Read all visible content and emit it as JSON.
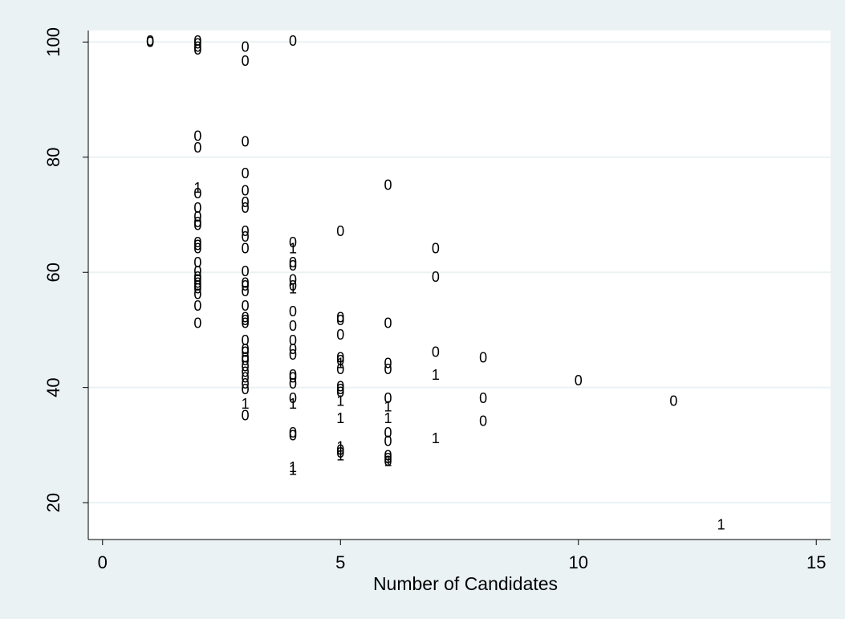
{
  "chart_data": {
    "type": "scatter",
    "xlabel": "Number of Candidates",
    "x": [
      1,
      1,
      2,
      2,
      2,
      2,
      2,
      2,
      2,
      2,
      2,
      2,
      2,
      2,
      2,
      2,
      2,
      2,
      2,
      2,
      2,
      2,
      2,
      2,
      2,
      2,
      2,
      3,
      3,
      3,
      3,
      3,
      3,
      3,
      3,
      3,
      3,
      3,
      3,
      3,
      3,
      3,
      3,
      3,
      3,
      3,
      3,
      3,
      3,
      3,
      3,
      3,
      3,
      3,
      3,
      3,
      3,
      4,
      4,
      4,
      4,
      4,
      4,
      4,
      4,
      4,
      4,
      4,
      4,
      4,
      4,
      4,
      4,
      4,
      4,
      4,
      4,
      4,
      4,
      5,
      5,
      5,
      5,
      5,
      5,
      5,
      5,
      5,
      5,
      5,
      5,
      5,
      5,
      5,
      5,
      5,
      6,
      6,
      6,
      6,
      6,
      6,
      6,
      6,
      6,
      6,
      6,
      6,
      6,
      7,
      7,
      7,
      7,
      7,
      8,
      8,
      8,
      10,
      12,
      13
    ],
    "y": [
      100,
      99.8,
      100,
      99.5,
      99,
      98.5,
      83.5,
      81.5,
      74.5,
      73.5,
      71,
      69.5,
      68.5,
      68,
      65,
      64.5,
      64,
      61.5,
      60,
      59,
      58.5,
      58,
      57.5,
      57,
      56,
      54,
      51,
      99,
      96.5,
      82.5,
      77,
      74,
      72,
      71,
      67,
      66,
      64,
      60,
      58,
      57.5,
      56.5,
      54,
      52,
      51.5,
      51,
      48,
      46.5,
      46,
      45,
      44.5,
      43.5,
      42.5,
      41.5,
      40.5,
      39.5,
      37,
      35,
      100,
      65,
      64,
      61.5,
      61,
      58.5,
      57.5,
      57,
      53,
      50.5,
      48,
      46.5,
      45.5,
      42,
      41.5,
      40.5,
      38,
      37,
      32,
      31.5,
      26,
      25.5,
      67,
      52,
      51.5,
      49,
      45,
      44.5,
      44,
      43,
      40,
      39.5,
      39,
      37.5,
      34.5,
      29.5,
      29,
      28.5,
      28,
      75,
      51,
      44,
      43,
      38,
      36.5,
      34.5,
      32,
      30.5,
      28,
      27.5,
      27,
      27,
      64,
      59,
      46,
      42,
      31,
      45,
      38,
      34,
      41,
      37.5,
      16
    ],
    "labels": [
      "0",
      "0",
      "0",
      "0",
      "0",
      "0",
      "0",
      "0",
      "1",
      "0",
      "0",
      "0",
      "0",
      "0",
      "0",
      "0",
      "0",
      "0",
      "0",
      "0",
      "0",
      "0",
      "0",
      "0",
      "0",
      "0",
      "0",
      "0",
      "0",
      "0",
      "0",
      "0",
      "0",
      "0",
      "0",
      "0",
      "0",
      "0",
      "0",
      "0",
      "0",
      "0",
      "0",
      "0",
      "0",
      "0",
      "0",
      "0",
      "0",
      "0",
      "0",
      "0",
      "0",
      "0",
      "0",
      "1",
      "0",
      "0",
      "0",
      "1",
      "0",
      "0",
      "0",
      "0",
      "1",
      "0",
      "0",
      "0",
      "0",
      "0",
      "0",
      "0",
      "0",
      "0",
      "1",
      "0",
      "0",
      "1",
      "1",
      "0",
      "0",
      "0",
      "0",
      "0",
      "0",
      "1",
      "0",
      "0",
      "0",
      "0",
      "1",
      "1",
      "1",
      "0",
      "0",
      "1",
      "0",
      "0",
      "0",
      "0",
      "0",
      "1",
      "1",
      "0",
      "0",
      "0",
      "0",
      "0",
      "1",
      "0",
      "0",
      "0",
      "1",
      "1",
      "0",
      "0",
      "0",
      "0",
      "0",
      "1"
    ],
    "color": "#000000",
    "xlim": [
      -0.3,
      15.3
    ],
    "ylim": [
      13.6,
      102
    ],
    "xticks": [
      0,
      5,
      10,
      15
    ],
    "yticks": [
      20,
      40,
      60,
      80,
      100
    ],
    "grid": true
  }
}
